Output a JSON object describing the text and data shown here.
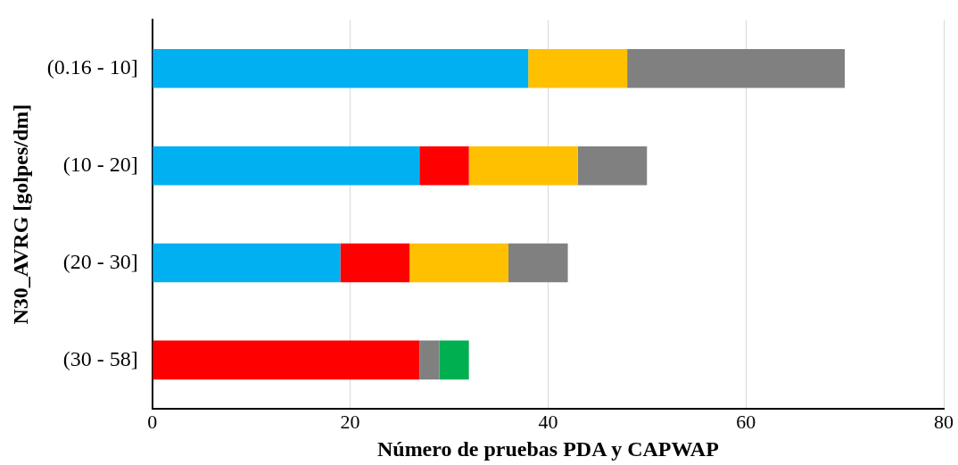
{
  "chart_data": {
    "type": "bar",
    "orientation": "horizontal",
    "stacked": true,
    "xlabel": "Número de pruebas PDA y CAPWAP",
    "ylabel": "N30_AVRG [golpes/dm]",
    "categories": [
      "(0.16 - 10]",
      "(10 - 20]",
      "(20 - 30]",
      "(30 - 58]"
    ],
    "series": [
      {
        "color": "#00b0f0",
        "values": [
          38,
          27,
          19,
          0
        ]
      },
      {
        "color": "#ff0000",
        "values": [
          0,
          5,
          7,
          27
        ]
      },
      {
        "color": "#ffc000",
        "values": [
          10,
          11,
          10,
          0
        ]
      },
      {
        "color": "#808080",
        "values": [
          22,
          7,
          6,
          2
        ]
      },
      {
        "color": "#00b050",
        "values": [
          0,
          0,
          0,
          3
        ]
      }
    ],
    "xlim": [
      0,
      80
    ],
    "xticks": [
      0,
      20,
      40,
      60,
      80
    ],
    "grid": "x"
  }
}
